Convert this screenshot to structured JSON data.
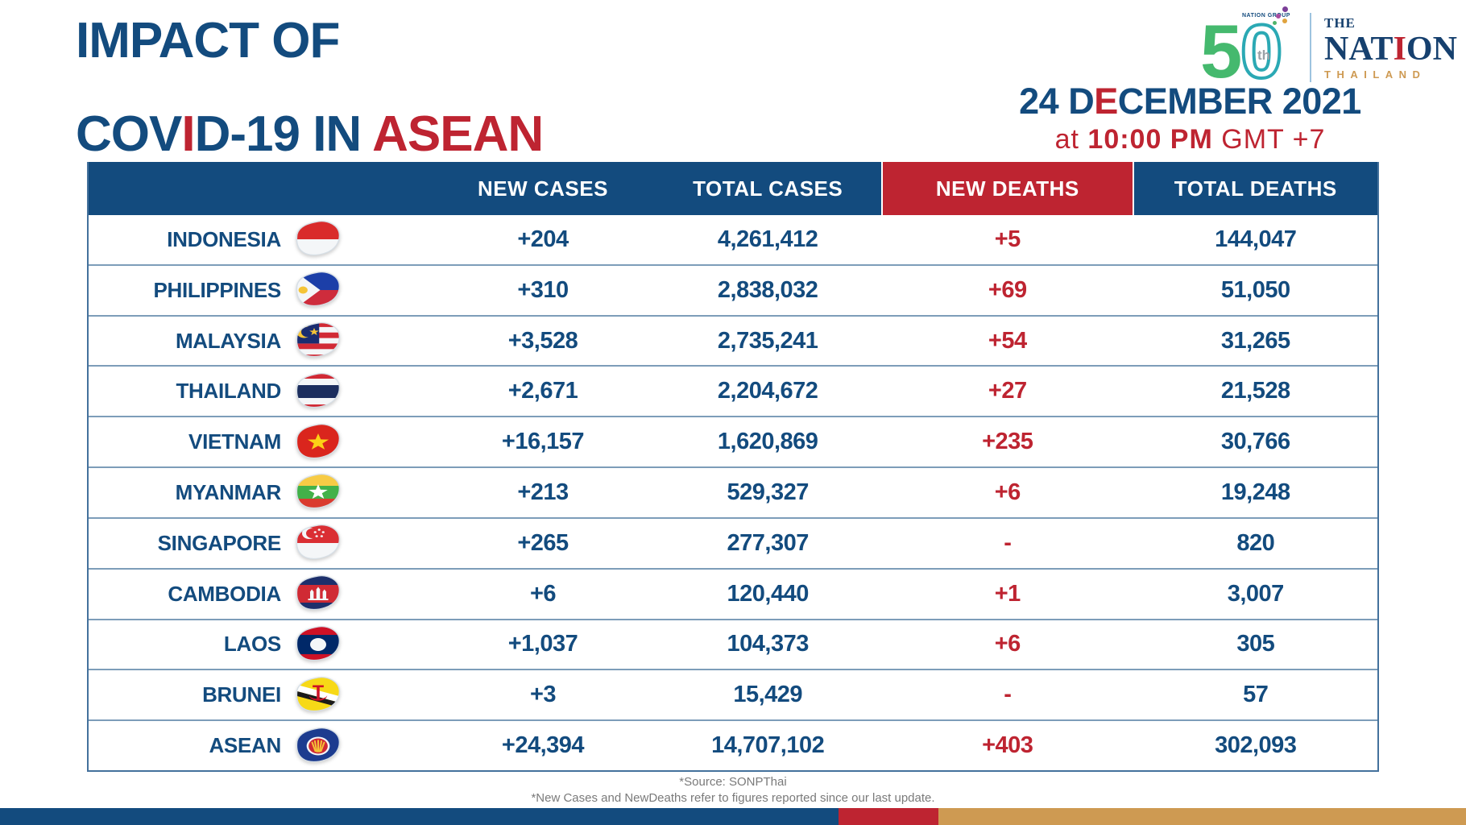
{
  "colors": {
    "navy": "#134B7E",
    "red": "#BE2431",
    "gold": "#CE9A52",
    "footer_gray": "#7A7A7A"
  },
  "title": {
    "line1": "IMPACT OF",
    "line2_part1": "COV",
    "line2_red_letter": "I",
    "line2_part2": "D-19 IN ",
    "line2_accent": "ASEAN"
  },
  "logo": {
    "group_text": "NATION GROUP",
    "five": "5",
    "zero": "0",
    "th": "th",
    "the": "THE",
    "nation_part1": "NAT",
    "nation_red_letter": "I",
    "nation_part2": "ON",
    "thailand": "THAILAND"
  },
  "datetime": {
    "date_part1": "24 D",
    "date_red_letter": "E",
    "date_part2": "CEMBER 2021",
    "time_prefix": "at ",
    "time_bold": "10:00 PM",
    "time_suffix": " GMT +7"
  },
  "chart_data": {
    "type": "table",
    "title": "IMPACT OF COVID-19 IN ASEAN",
    "columns": [
      "",
      "NEW CASES",
      "TOTAL CASES",
      "NEW DEATHS",
      "TOTAL DEATHS"
    ],
    "rows": [
      {
        "country": "INDONESIA",
        "flag": "indonesia",
        "new_cases": "+204",
        "total_cases": "4,261,412",
        "new_deaths": "+5",
        "total_deaths": "144,047"
      },
      {
        "country": "PHILIPPINES",
        "flag": "philippines",
        "new_cases": "+310",
        "total_cases": "2,838,032",
        "new_deaths": "+69",
        "total_deaths": "51,050"
      },
      {
        "country": "MALAYSIA",
        "flag": "malaysia",
        "new_cases": "+3,528",
        "total_cases": "2,735,241",
        "new_deaths": "+54",
        "total_deaths": "31,265"
      },
      {
        "country": "THAILAND",
        "flag": "thailand",
        "new_cases": "+2,671",
        "total_cases": "2,204,672",
        "new_deaths": "+27",
        "total_deaths": "21,528"
      },
      {
        "country": "VIETNAM",
        "flag": "vietnam",
        "new_cases": "+16,157",
        "total_cases": "1,620,869",
        "new_deaths": "+235",
        "total_deaths": "30,766"
      },
      {
        "country": "MYANMAR",
        "flag": "myanmar",
        "new_cases": "+213",
        "total_cases": "529,327",
        "new_deaths": "+6",
        "total_deaths": "19,248"
      },
      {
        "country": "SINGAPORE",
        "flag": "singapore",
        "new_cases": "+265",
        "total_cases": "277,307",
        "new_deaths": "-",
        "total_deaths": "820"
      },
      {
        "country": "CAMBODIA",
        "flag": "cambodia",
        "new_cases": "+6",
        "total_cases": "120,440",
        "new_deaths": "+1",
        "total_deaths": "3,007"
      },
      {
        "country": "LAOS",
        "flag": "laos",
        "new_cases": "+1,037",
        "total_cases": "104,373",
        "new_deaths": "+6",
        "total_deaths": "305"
      },
      {
        "country": "BRUNEI",
        "flag": "brunei",
        "new_cases": "+3",
        "total_cases": "15,429",
        "new_deaths": "-",
        "total_deaths": "57"
      },
      {
        "country": "ASEAN",
        "flag": "asean",
        "new_cases": "+24,394",
        "total_cases": "14,707,102",
        "new_deaths": "+403",
        "total_deaths": "302,093"
      }
    ]
  },
  "footer": {
    "source": "*Source: SONPThai",
    "note": "*New Cases and NewDeaths refer to figures reported since our last update."
  }
}
